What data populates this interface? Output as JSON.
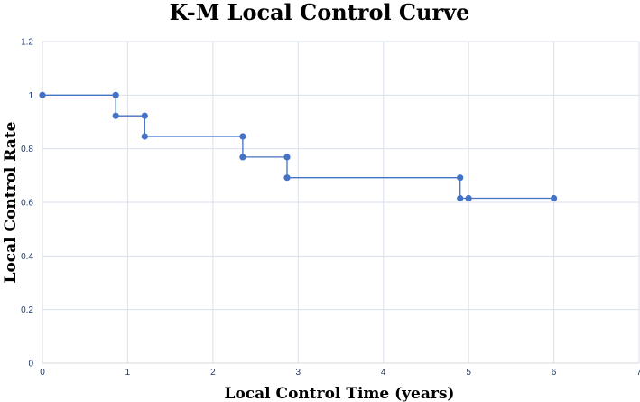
{
  "chart_data": {
    "type": "line",
    "title": "K-M Local Control Curve",
    "xlabel": "Local Control Time (years)",
    "ylabel": "Local Control Rate",
    "xlim": [
      0,
      7
    ],
    "ylim": [
      0,
      1.2
    ],
    "x_ticks": [
      "0",
      "1",
      "2",
      "3",
      "4",
      "5",
      "6",
      "7"
    ],
    "y_ticks": [
      "0",
      "0.2",
      "0.4",
      "0.6",
      "0.8",
      "1",
      "1.2"
    ],
    "grid": true,
    "legend": "none",
    "line_style": "step",
    "series": [
      {
        "color": "#4472c4",
        "x": [
          0,
          0.86,
          0.86,
          1.2,
          1.2,
          2.35,
          2.35,
          2.87,
          2.87,
          4.9,
          4.9,
          5.0,
          6.0
        ],
        "y": [
          1.0,
          1.0,
          0.923,
          0.923,
          0.846,
          0.846,
          0.769,
          0.769,
          0.692,
          0.692,
          0.615,
          0.615,
          0.615
        ]
      }
    ]
  }
}
